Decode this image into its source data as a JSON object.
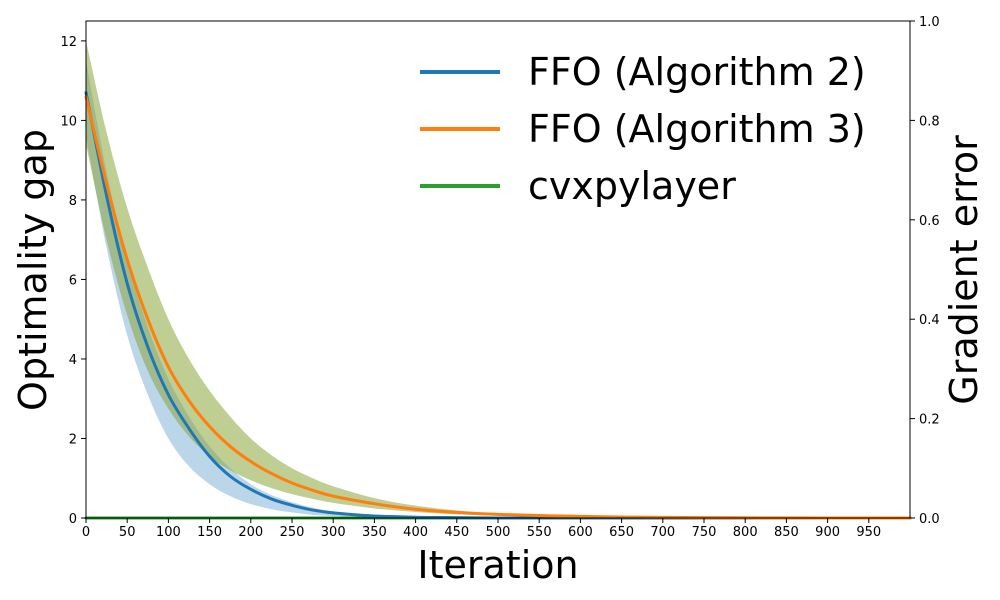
{
  "chart_data": {
    "type": "line",
    "xlabel": "Iteration",
    "ylabel": "Optimality gap",
    "y2label": "Gradient error",
    "xlim": [
      0,
      1000
    ],
    "ylim": [
      0,
      12.5
    ],
    "y2lim": [
      0,
      1.0
    ],
    "x_ticks": [
      0,
      50,
      100,
      150,
      200,
      250,
      300,
      350,
      400,
      450,
      500,
      550,
      600,
      650,
      700,
      750,
      800,
      850,
      900,
      950
    ],
    "y_ticks": [
      0,
      2,
      4,
      6,
      8,
      10,
      12
    ],
    "y2_ticks": [
      "0.0",
      "0.2",
      "0.4",
      "0.6",
      "0.8",
      "1.0"
    ],
    "grid": false,
    "legend_position": "top-right",
    "series": [
      {
        "name": "FFO (Algorithm 2)",
        "color": "#1f77b4",
        "axis": "left",
        "x": [
          0,
          25,
          50,
          75,
          100,
          125,
          150,
          175,
          200,
          225,
          250,
          275,
          300,
          350,
          400,
          450,
          500,
          600,
          700,
          800,
          900,
          1000
        ],
        "y": [
          10.7,
          8.1,
          5.9,
          4.3,
          3.1,
          2.25,
          1.55,
          1.05,
          0.72,
          0.48,
          0.32,
          0.2,
          0.13,
          0.05,
          0.02,
          0.01,
          0.0,
          0.0,
          0.0,
          0.0,
          0.0,
          0.0
        ],
        "band_lower": [
          9.6,
          6.8,
          4.6,
          3.1,
          2.0,
          1.3,
          0.85,
          0.55,
          0.35,
          0.22,
          0.14,
          0.08,
          0.05,
          0.02,
          0.01,
          0.0,
          0.0,
          0.0,
          0.0,
          0.0,
          0.0,
          0.0
        ],
        "band_upper": [
          11.5,
          8.7,
          6.5,
          4.8,
          3.5,
          2.55,
          1.8,
          1.25,
          0.85,
          0.58,
          0.4,
          0.26,
          0.17,
          0.07,
          0.03,
          0.01,
          0.0,
          0.0,
          0.0,
          0.0,
          0.0,
          0.0
        ]
      },
      {
        "name": "FFO (Algorithm 3)",
        "color": "#ff7f0e",
        "axis": "left",
        "x": [
          0,
          25,
          50,
          75,
          100,
          125,
          150,
          175,
          200,
          225,
          250,
          275,
          300,
          350,
          400,
          450,
          500,
          600,
          700,
          800,
          900,
          1000
        ],
        "y": [
          10.6,
          8.4,
          6.5,
          5.0,
          3.8,
          2.95,
          2.3,
          1.8,
          1.42,
          1.12,
          0.88,
          0.7,
          0.55,
          0.36,
          0.22,
          0.14,
          0.09,
          0.04,
          0.015,
          0.005,
          0.0,
          0.0
        ],
        "band_lower": [
          9.4,
          7.0,
          5.1,
          3.7,
          2.75,
          2.05,
          1.55,
          1.2,
          0.95,
          0.75,
          0.6,
          0.48,
          0.38,
          0.24,
          0.15,
          0.09,
          0.06,
          0.025,
          0.01,
          0.0,
          0.0,
          0.0
        ],
        "band_upper": [
          12.0,
          9.7,
          7.8,
          6.3,
          5.0,
          4.0,
          3.2,
          2.55,
          2.0,
          1.58,
          1.25,
          1.0,
          0.8,
          0.5,
          0.31,
          0.19,
          0.12,
          0.05,
          0.02,
          0.01,
          0.0,
          0.0
        ]
      },
      {
        "name": "cvxpylayer",
        "color": "#2ca02c",
        "axis": "right",
        "x": [
          0,
          100,
          200,
          300,
          400,
          500,
          600,
          700,
          800,
          900,
          1000
        ],
        "y": [
          0.0,
          0.0,
          0.0,
          0.0,
          0.0,
          0.0,
          0.0,
          0.0,
          0.0,
          0.0,
          0.0
        ]
      }
    ]
  }
}
